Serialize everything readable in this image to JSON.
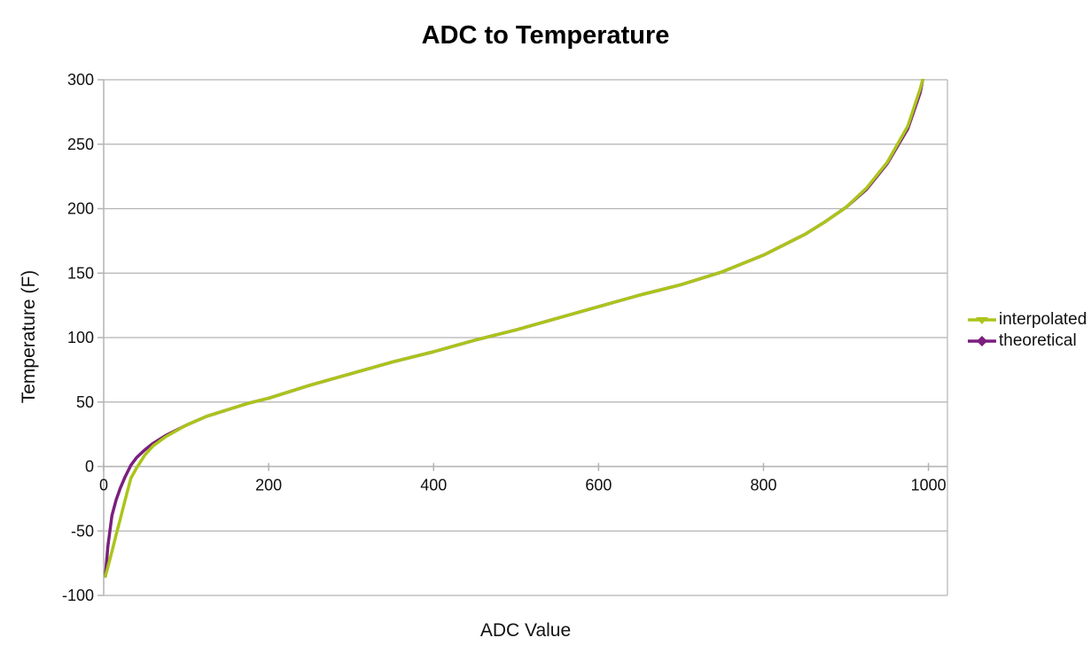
{
  "chart_data": {
    "type": "line",
    "title": "ADC to Temperature",
    "xlabel": "ADC Value",
    "ylabel": "Temperature (F)",
    "xlim": [
      0,
      1023
    ],
    "ylim": [
      -100,
      300
    ],
    "x_ticks": [
      0,
      200,
      400,
      600,
      800,
      1000
    ],
    "y_ticks": [
      -100,
      -50,
      0,
      50,
      100,
      150,
      200,
      250,
      300
    ],
    "grid": "horizontal-only",
    "legend_position": "right",
    "axis_color": "#b3b3b3",
    "x": [
      2,
      5,
      10,
      15,
      20,
      26,
      33,
      40,
      50,
      60,
      75,
      100,
      125,
      150,
      175,
      200,
      250,
      300,
      350,
      400,
      450,
      500,
      550,
      600,
      650,
      700,
      750,
      800,
      850,
      875,
      900,
      925,
      950,
      975,
      990,
      993
    ],
    "series": [
      {
        "name": "interpolated",
        "color": "#abc41a",
        "marker": "triangle-down",
        "values": [
          -85,
          -78,
          -66,
          -53,
          -41,
          -26,
          -9,
          -1,
          9,
          16,
          23,
          32,
          39,
          44,
          49,
          53,
          63,
          72,
          81,
          89,
          98,
          106,
          115,
          124,
          133,
          141,
          151,
          164,
          180,
          190,
          201,
          216,
          236,
          264,
          293,
          300
        ]
      },
      {
        "name": "theoretical",
        "color": "#7a1f7e",
        "marker": "diamond",
        "values": [
          -85,
          -62,
          -38,
          -26,
          -17,
          -8,
          1,
          7,
          13,
          18,
          24,
          32,
          39,
          44,
          49,
          53,
          63,
          72,
          81,
          89,
          98,
          106,
          115,
          124,
          133,
          141,
          151,
          164,
          180,
          190,
          201,
          215,
          235,
          262,
          290,
          300
        ]
      }
    ]
  }
}
